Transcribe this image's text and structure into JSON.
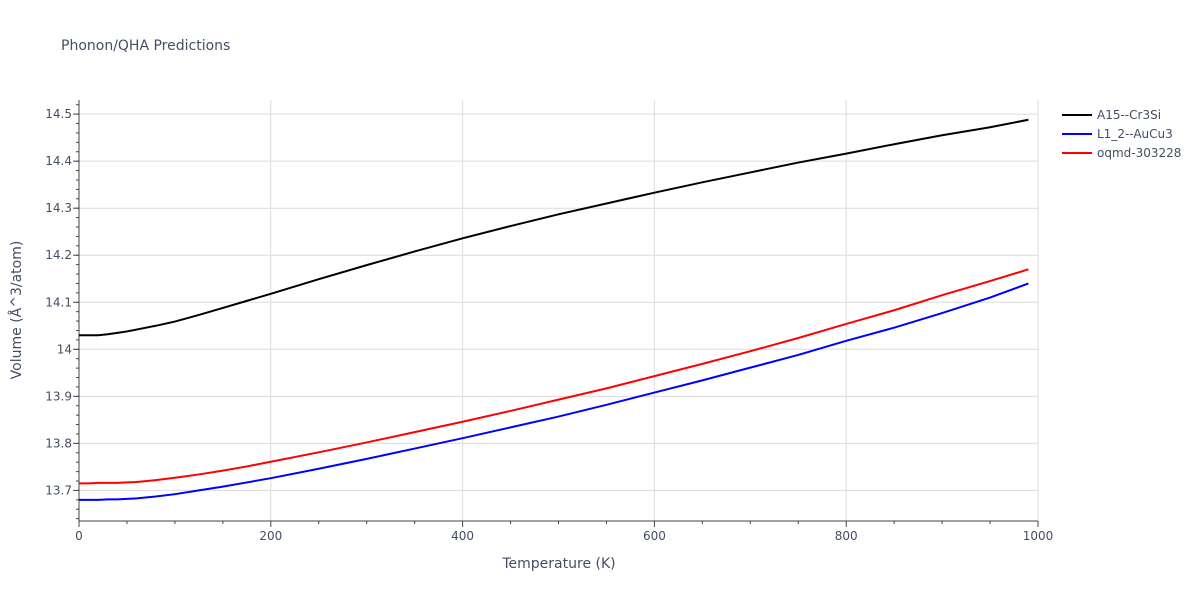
{
  "chart_data": {
    "type": "line",
    "title": "Phonon/QHA Predictions",
    "xlabel": "Temperature (K)",
    "ylabel": "Volume (Å^3/atom)",
    "xlim": [
      0,
      1000
    ],
    "ylim": [
      13.635,
      14.53
    ],
    "x_ticks": [
      0,
      200,
      400,
      600,
      800,
      1000
    ],
    "x_tick_labels": [
      "0",
      "200",
      "400",
      "600",
      "800",
      "1000"
    ],
    "y_ticks": [
      13.7,
      13.8,
      13.9,
      14.0,
      14.1,
      14.2,
      14.3,
      14.4,
      14.5
    ],
    "y_tick_labels": [
      "13.7",
      "13.8",
      "13.9",
      "14",
      "14.1",
      "14.2",
      "14.3",
      "14.4",
      "14.5"
    ],
    "grid": true,
    "legend_position": "top-right",
    "series": [
      {
        "name": "A15--Cr3Si",
        "color": "#000000",
        "x": [
          0,
          10,
          20,
          30,
          40,
          50,
          60,
          80,
          100,
          125,
          150,
          175,
          200,
          250,
          300,
          350,
          400,
          450,
          500,
          550,
          600,
          650,
          700,
          750,
          800,
          850,
          900,
          950,
          990
        ],
        "y": [
          14.03,
          14.03,
          14.03,
          14.032,
          14.035,
          14.038,
          14.042,
          14.05,
          14.059,
          14.073,
          14.088,
          14.103,
          14.118,
          14.149,
          14.179,
          14.208,
          14.236,
          14.262,
          14.287,
          14.31,
          14.333,
          14.355,
          14.376,
          14.397,
          14.416,
          14.436,
          14.455,
          14.472,
          14.488
        ]
      },
      {
        "name": "L1_2--AuCu3",
        "color": "#0000ff",
        "x": [
          0,
          10,
          20,
          30,
          40,
          50,
          60,
          80,
          100,
          125,
          150,
          175,
          200,
          250,
          300,
          350,
          400,
          450,
          500,
          550,
          600,
          650,
          700,
          750,
          800,
          850,
          900,
          950,
          990
        ],
        "y": [
          13.68,
          13.68,
          13.68,
          13.681,
          13.681,
          13.682,
          13.683,
          13.687,
          13.692,
          13.7,
          13.708,
          13.717,
          13.726,
          13.746,
          13.767,
          13.789,
          13.811,
          13.834,
          13.857,
          13.882,
          13.908,
          13.934,
          13.961,
          13.988,
          14.018,
          14.046,
          14.077,
          14.11,
          14.14
        ]
      },
      {
        "name": "oqmd-303228",
        "color": "#ff0000",
        "x": [
          0,
          10,
          20,
          30,
          40,
          50,
          60,
          80,
          100,
          125,
          150,
          175,
          200,
          250,
          300,
          350,
          400,
          450,
          500,
          550,
          600,
          650,
          700,
          750,
          800,
          850,
          900,
          950,
          990
        ],
        "y": [
          13.715,
          13.715,
          13.716,
          13.716,
          13.716,
          13.717,
          13.718,
          13.722,
          13.727,
          13.734,
          13.742,
          13.751,
          13.761,
          13.781,
          13.802,
          13.824,
          13.846,
          13.869,
          13.893,
          13.917,
          13.943,
          13.969,
          13.996,
          14.024,
          14.054,
          14.083,
          14.115,
          14.145,
          14.17
        ]
      }
    ]
  }
}
